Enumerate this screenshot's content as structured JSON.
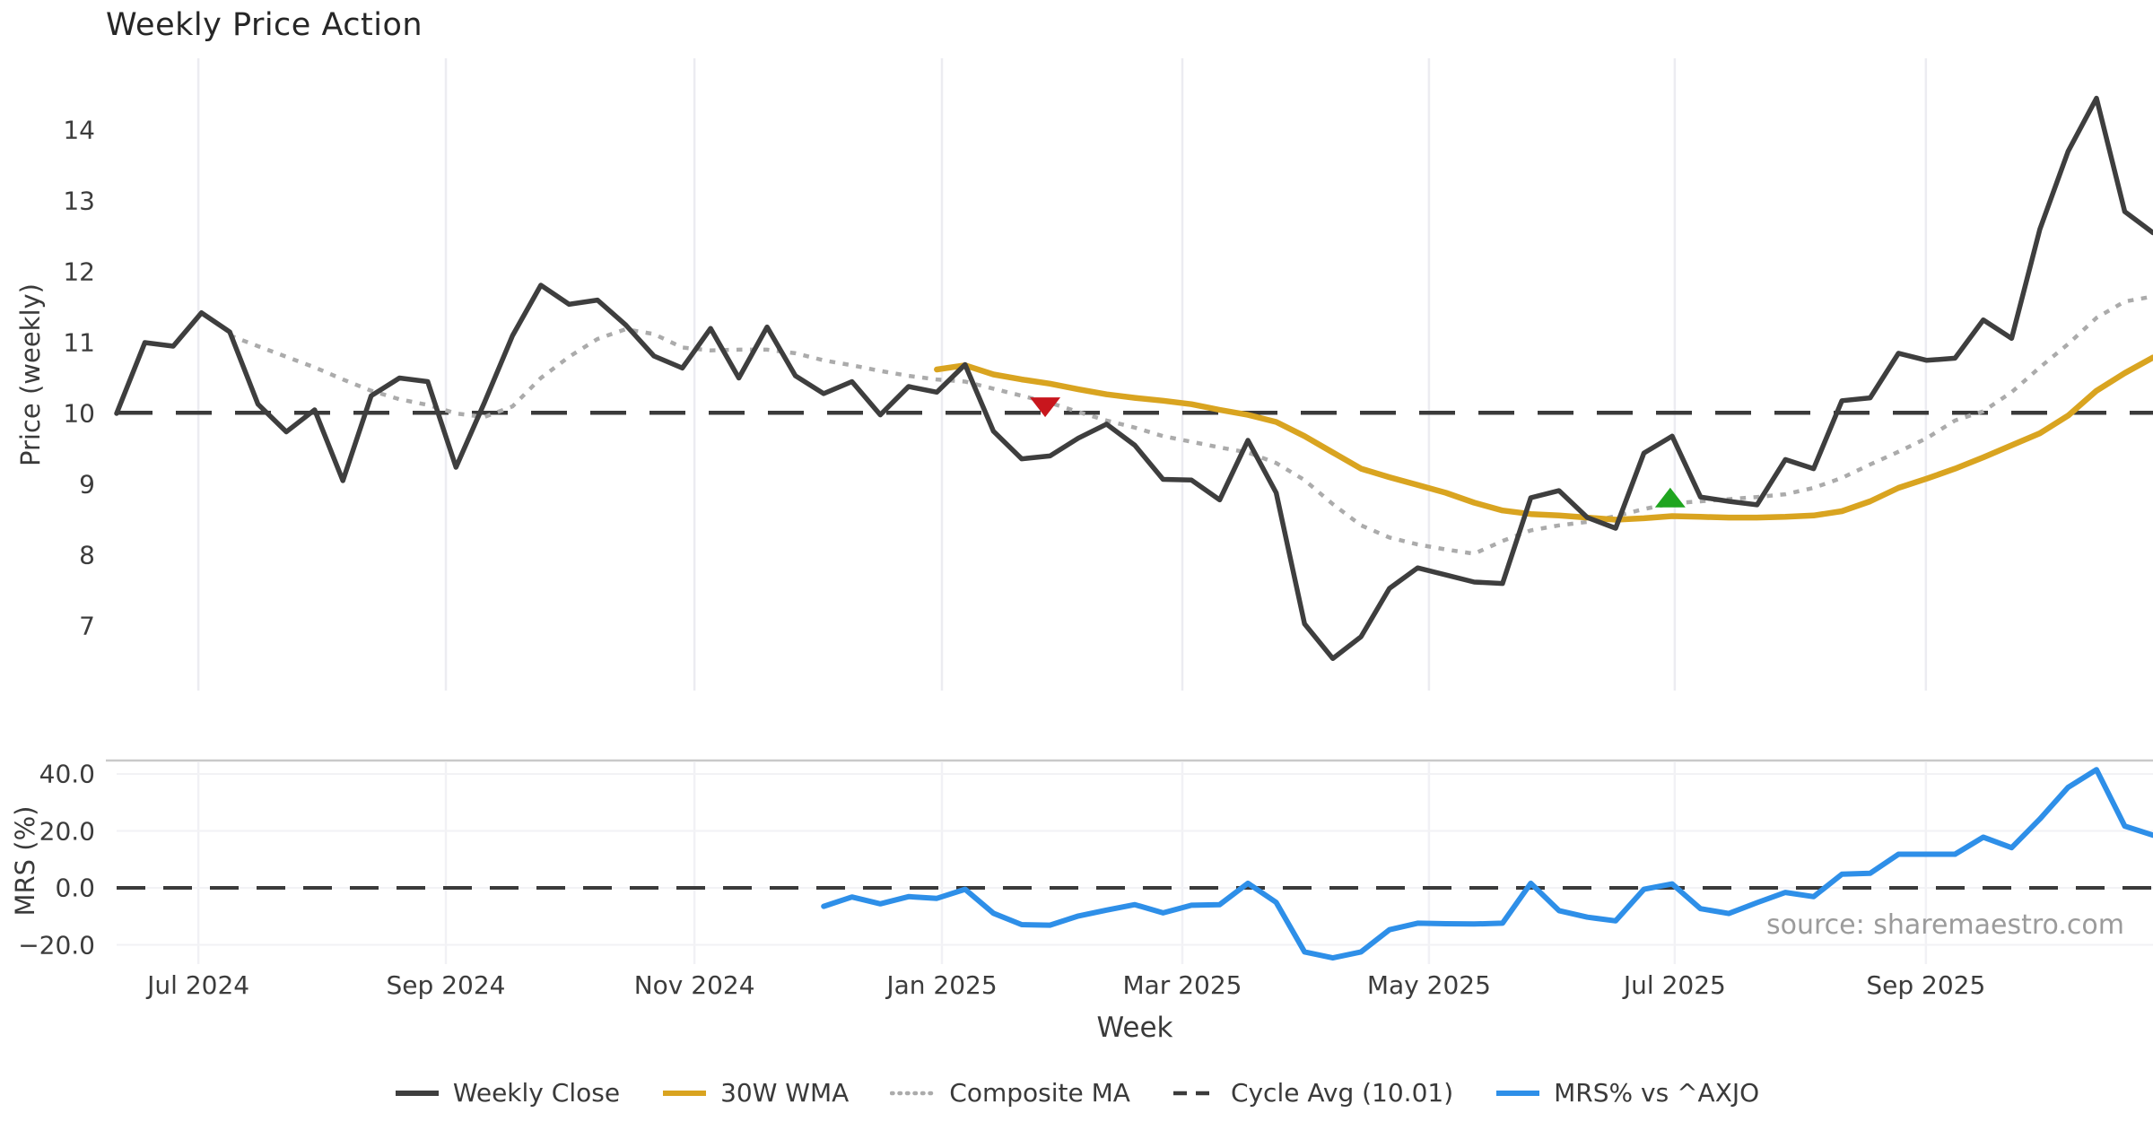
{
  "title": "Weekly Price Action",
  "source_note": "source: sharemaestro.com",
  "x_axis": {
    "label": "Week",
    "tick_labels": [
      "Jul 2024",
      "Sep 2024",
      "Nov 2024",
      "Jan 2025",
      "Mar 2025",
      "May 2025",
      "Jul 2025",
      "Sep 2025"
    ],
    "tick_weeks": [
      2.89,
      11.64,
      20.43,
      29.18,
      37.68,
      46.4,
      55.09,
      63.97
    ]
  },
  "chart_data": [
    {
      "type": "line",
      "panel": "price",
      "ylabel": "Price (weekly)",
      "yticks": [
        7,
        8,
        9,
        10,
        11,
        12,
        13,
        14
      ],
      "ylim": [
        6.1,
        15.0
      ],
      "grid": "vertical-months",
      "cycle_avg": 10.01,
      "series": [
        {
          "name": "weekly_close",
          "label": "Weekly Close",
          "color": "#3e3e3e",
          "style": "solid",
          "start_week": 0,
          "values": [
            10.0,
            11.0,
            10.95,
            11.42,
            11.15,
            10.13,
            9.74,
            10.05,
            9.05,
            10.25,
            10.5,
            10.45,
            9.24,
            10.15,
            11.1,
            11.81,
            11.54,
            11.6,
            11.25,
            10.81,
            10.64,
            11.2,
            10.5,
            11.22,
            10.53,
            10.28,
            10.45,
            9.98,
            10.38,
            10.3,
            10.69,
            9.75,
            9.36,
            9.4,
            9.65,
            9.85,
            9.55,
            9.07,
            9.06,
            8.78,
            9.62,
            8.88,
            7.03,
            6.54,
            6.85,
            7.53,
            7.82,
            7.72,
            7.62,
            7.6,
            8.81,
            8.91,
            8.53,
            8.38,
            9.44,
            9.68,
            8.82,
            8.76,
            8.71,
            9.35,
            9.22,
            10.18,
            10.22,
            10.85,
            10.75,
            10.78,
            11.32,
            11.06,
            12.6,
            13.7,
            14.45,
            12.85,
            12.55
          ]
        },
        {
          "name": "wma30",
          "label": "30W WMA",
          "color": "#d9a420",
          "style": "solid",
          "start_week": 29,
          "values": [
            10.62,
            10.68,
            10.55,
            10.48,
            10.42,
            10.34,
            10.27,
            10.22,
            10.18,
            10.13,
            10.05,
            9.98,
            9.88,
            9.68,
            9.45,
            9.22,
            9.1,
            8.99,
            8.88,
            8.74,
            8.63,
            8.58,
            8.56,
            8.53,
            8.5,
            8.52,
            8.55,
            8.54,
            8.53,
            8.53,
            8.54,
            8.56,
            8.62,
            8.76,
            8.95,
            9.08,
            9.22,
            9.38,
            9.55,
            9.72,
            9.97,
            10.32,
            10.57,
            10.79
          ]
        },
        {
          "name": "composite_ma",
          "label": "Composite MA",
          "color": "#ababab",
          "style": "dotted",
          "start_week": 4,
          "values": [
            11.1,
            10.95,
            10.8,
            10.65,
            10.48,
            10.32,
            10.2,
            10.12,
            10.0,
            9.95,
            10.1,
            10.5,
            10.8,
            11.05,
            11.19,
            11.12,
            10.93,
            10.89,
            10.9,
            10.9,
            10.85,
            10.75,
            10.68,
            10.6,
            10.53,
            10.48,
            10.45,
            10.35,
            10.25,
            10.15,
            10.02,
            9.9,
            9.8,
            9.68,
            9.6,
            9.52,
            9.45,
            9.3,
            9.06,
            8.72,
            8.42,
            8.25,
            8.15,
            8.08,
            8.02,
            8.2,
            8.35,
            8.42,
            8.47,
            8.55,
            8.65,
            8.73,
            8.76,
            8.79,
            8.82,
            8.86,
            8.95,
            9.09,
            9.28,
            9.46,
            9.65,
            9.9,
            10.03,
            10.3,
            10.65,
            10.98,
            11.35,
            11.58,
            11.65
          ]
        },
        {
          "name": "cycle_avg_line",
          "label": "Cycle Avg (10.01)",
          "color": "#3a3a3a",
          "style": "dashed",
          "value": 10.01
        }
      ],
      "markers": [
        {
          "name": "sell-signal",
          "shape": "triangle-down",
          "color": "#c8161d",
          "week": 32.83,
          "value": 10.1
        },
        {
          "name": "buy-signal",
          "shape": "triangle-up",
          "color": "#1fa51f",
          "week": 54.93,
          "value": 8.8
        }
      ]
    },
    {
      "type": "line",
      "panel": "mrs",
      "ylabel": "MRS (%)",
      "yticks": [
        40,
        20,
        0,
        -20
      ],
      "ytick_labels": [
        "40.0",
        "20.0",
        "0.0",
        "−20.0"
      ],
      "ylim": [
        -27,
        45
      ],
      "grid": "horizontal",
      "zero_line": 0,
      "series": [
        {
          "name": "mrs",
          "label": "MRS% vs ^AXJO",
          "color": "#2e8fe8",
          "style": "solid",
          "start_week": 25,
          "values": [
            -6.5,
            -3.2,
            -5.6,
            -3.1,
            -3.7,
            -0.5,
            -8.9,
            -12.9,
            -13.1,
            -9.9,
            -7.8,
            -5.9,
            -8.8,
            -6.1,
            -5.9,
            1.6,
            -5.1,
            -22.5,
            -24.6,
            -22.5,
            -14.7,
            -12.4,
            -12.6,
            -12.7,
            -12.4,
            1.6,
            -8.0,
            -10.3,
            -11.6,
            -0.5,
            1.4,
            -7.3,
            -9.0,
            -5.2,
            -1.6,
            -3.1,
            4.8,
            5.1,
            11.8,
            11.8,
            11.8,
            17.8,
            14.1,
            24.2,
            35.3,
            41.5,
            21.7,
            18.5
          ]
        }
      ]
    }
  ],
  "legend": [
    {
      "label": "Weekly Close",
      "color": "#3e3e3e",
      "style": "solid"
    },
    {
      "label": "30W WMA",
      "color": "#d9a420",
      "style": "solid"
    },
    {
      "label": "Composite MA",
      "color": "#ababab",
      "style": "dotted"
    },
    {
      "label": "Cycle Avg (10.01)",
      "color": "#3a3a3a",
      "style": "dashed"
    },
    {
      "label": "MRS% vs ^AXJO",
      "color": "#2e8fe8",
      "style": "solid"
    }
  ]
}
